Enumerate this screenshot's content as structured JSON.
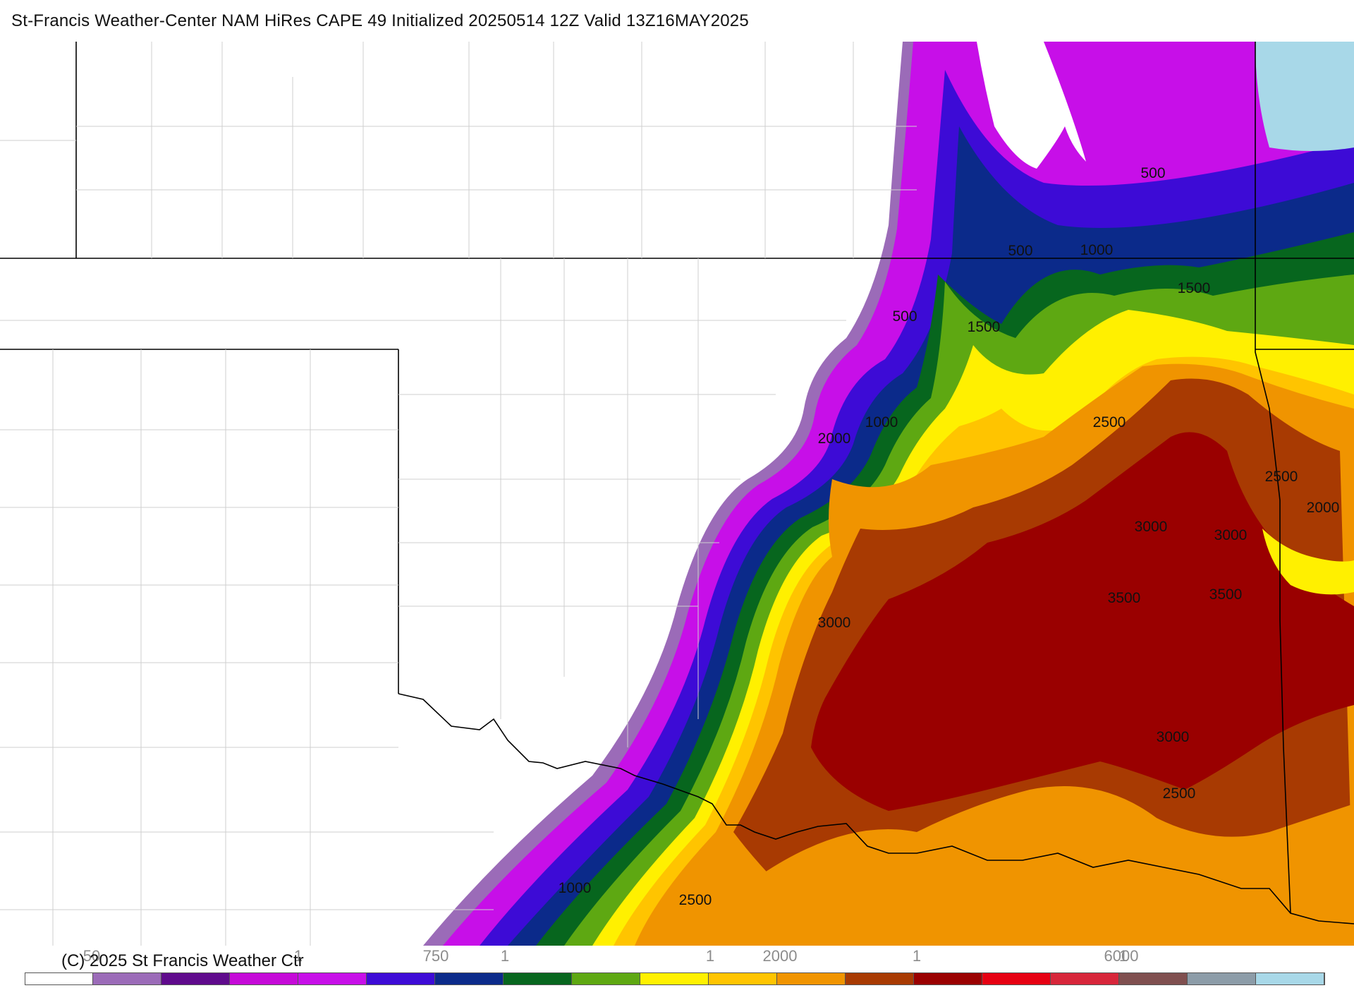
{
  "title": "St-Francis Weather-Center NAM HiRes CAPE  49 Initialized 20250514 12Z Valid 13Z16MAY2025",
  "copyright": "(C) 2025 St Francis Weather Ctr",
  "legend": {
    "tick_labels": [
      "50",
      "1",
      "750",
      "1",
      "1",
      "2000",
      "1",
      "6000",
      "1"
    ],
    "colors": [
      "#ffffff",
      "#9b6bb8",
      "#5f0a8c",
      "#c50ad8",
      "#c70fe8",
      "#3d0bd6",
      "#0b2a8a",
      "#07661e",
      "#5ea812",
      "#fff000",
      "#ffc400",
      "#f09400",
      "#a83a02",
      "#9a0000",
      "#e60012",
      "#d7263a",
      "#7f4f4f",
      "#8c9ca8",
      "#a8d8e8"
    ]
  },
  "map": {
    "field": "CAPE",
    "contour_labels": [
      {
        "text": "500"
      },
      {
        "text": "500"
      },
      {
        "text": "1000"
      },
      {
        "text": "1500"
      },
      {
        "text": "500"
      },
      {
        "text": "1500"
      },
      {
        "text": "1000"
      },
      {
        "text": "2000"
      },
      {
        "text": "2500"
      },
      {
        "text": "2500"
      },
      {
        "text": "2000"
      },
      {
        "text": "3000"
      },
      {
        "text": "3000"
      },
      {
        "text": "3500"
      },
      {
        "text": "3500"
      },
      {
        "text": "3000"
      },
      {
        "text": "3000"
      },
      {
        "text": "2500"
      },
      {
        "text": "1000"
      },
      {
        "text": "2500"
      }
    ]
  }
}
